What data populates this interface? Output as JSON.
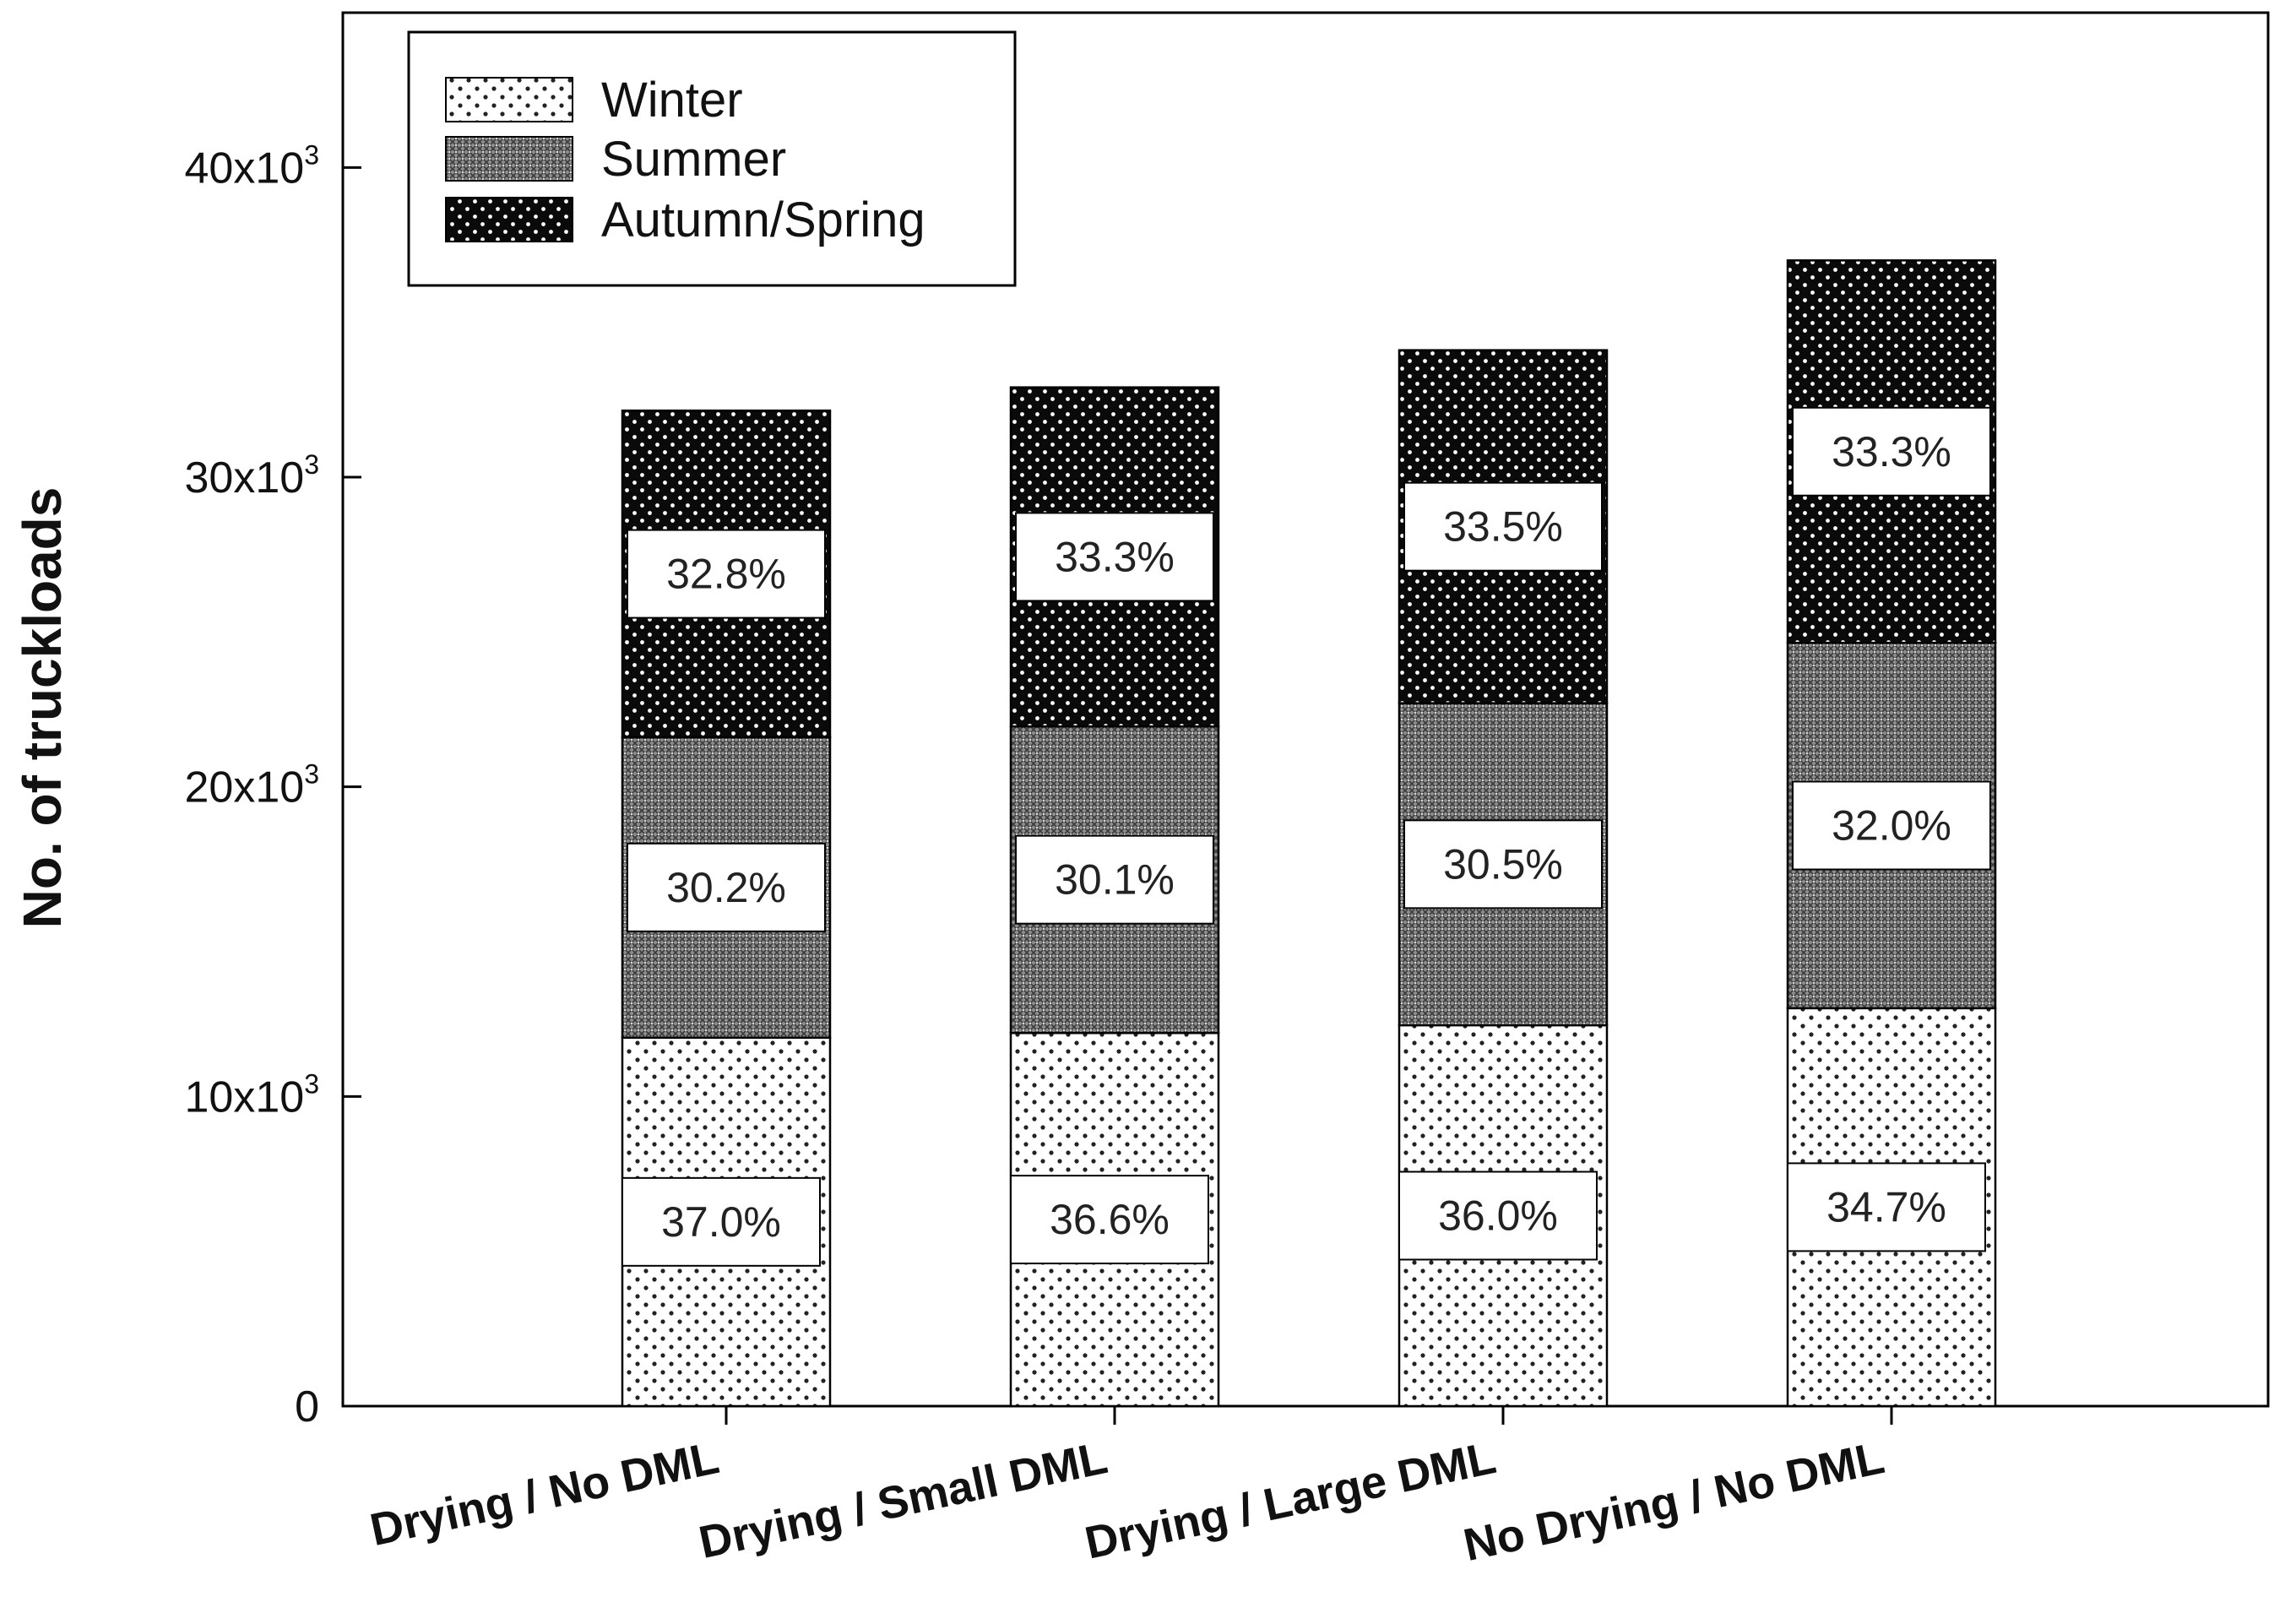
{
  "chart_data": {
    "type": "bar",
    "stacked": true,
    "title": "",
    "xlabel": "",
    "ylabel": "No. of truckloads",
    "ylim": [
      0,
      45000
    ],
    "yticks": [
      {
        "value": 0,
        "base": "0",
        "exp": ""
      },
      {
        "value": 10000,
        "base": "10x10",
        "exp": "3"
      },
      {
        "value": 20000,
        "base": "20x10",
        "exp": "3"
      },
      {
        "value": 30000,
        "base": "30x10",
        "exp": "3"
      },
      {
        "value": 40000,
        "base": "40x10",
        "exp": "3"
      }
    ],
    "categories": [
      "Drying / No DML",
      "Drying / Small DML",
      "Drying / Large DML",
      "No Drying / No DML"
    ],
    "series": [
      {
        "name": "Winter",
        "pattern": "sparse-dots",
        "values": [
          11900,
          12050,
          12300,
          12850
        ],
        "labels": [
          "37.0%",
          "36.6%",
          "36.0%",
          "34.7%"
        ]
      },
      {
        "name": "Summer",
        "pattern": "crosshatch",
        "values": [
          9700,
          9900,
          10400,
          11800
        ],
        "labels": [
          "30.2%",
          "30.1%",
          "30.5%",
          "32.0%"
        ]
      },
      {
        "name": "Autumn/Spring",
        "pattern": "dense-dots",
        "values": [
          10550,
          10950,
          11400,
          12350
        ],
        "labels": [
          "32.8%",
          "33.3%",
          "33.5%",
          "33.3%"
        ]
      }
    ],
    "legend": {
      "position": "top-left",
      "entries": [
        "Winter",
        "Summer",
        "Autumn/Spring"
      ]
    },
    "grid": false
  }
}
